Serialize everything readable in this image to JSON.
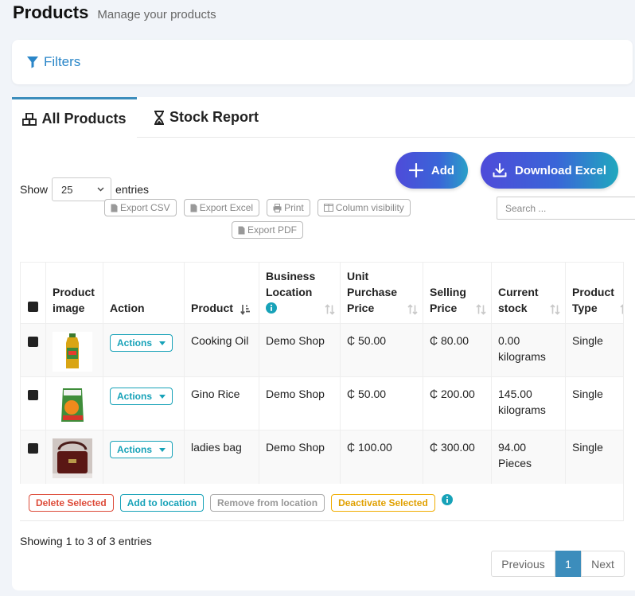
{
  "page": {
    "title": "Products",
    "subtitle": "Manage your products"
  },
  "filters": {
    "label": "Filters"
  },
  "tabs": [
    {
      "label": "All Products",
      "icon": "cubes-icon",
      "active": true
    },
    {
      "label": "Stock Report",
      "icon": "hourglass-icon",
      "active": false
    }
  ],
  "toolbar": {
    "add_label": "Add",
    "download_label": "Download Excel"
  },
  "entries": {
    "show_label": "Show",
    "value": "25",
    "entries_label": "entries"
  },
  "exports": {
    "csv": "Export CSV",
    "excel": "Export Excel",
    "print": "Print",
    "colvis": "Column visibility",
    "pdf": "Export PDF"
  },
  "search": {
    "placeholder": "Search ..."
  },
  "table": {
    "headers": {
      "image": "Product image",
      "action": "Action",
      "product": "Product",
      "location": "Business Location",
      "purchase": "Unit Purchase Price",
      "selling": "Selling Price",
      "stock": "Current stock",
      "type": "Product Type"
    },
    "rows": [
      {
        "action": "Actions",
        "product": "Cooking Oil",
        "location": "Demo Shop",
        "purchase": "₵ 50.00",
        "selling": "₵ 80.00",
        "stock": "0.00 kilograms",
        "type": "Single",
        "image": "cooking-oil"
      },
      {
        "action": "Actions",
        "product": "Gino Rice",
        "location": "Demo Shop",
        "purchase": "₵ 50.00",
        "selling": "₵ 200.00",
        "stock": "145.00 kilograms",
        "type": "Single",
        "image": "rice-bag"
      },
      {
        "action": "Actions",
        "product": "ladies bag",
        "location": "Demo Shop",
        "purchase": "₵ 100.00",
        "selling": "₵ 300.00",
        "stock": "94.00 Pieces",
        "type": "Single",
        "image": "handbag"
      }
    ]
  },
  "bulk": {
    "delete": "Delete Selected",
    "add_location": "Add to location",
    "remove_location": "Remove from location",
    "deactivate": "Deactivate Selected"
  },
  "footer": {
    "showing": "Showing 1 to 3 of 3 entries"
  },
  "pagination": {
    "prev": "Previous",
    "page": "1",
    "next": "Next"
  },
  "colors": {
    "accent": "#3c8dbc",
    "info": "#17a2b8",
    "danger": "#dd4b39",
    "warning": "#f0ad00",
    "filters": "#2a86c8"
  }
}
